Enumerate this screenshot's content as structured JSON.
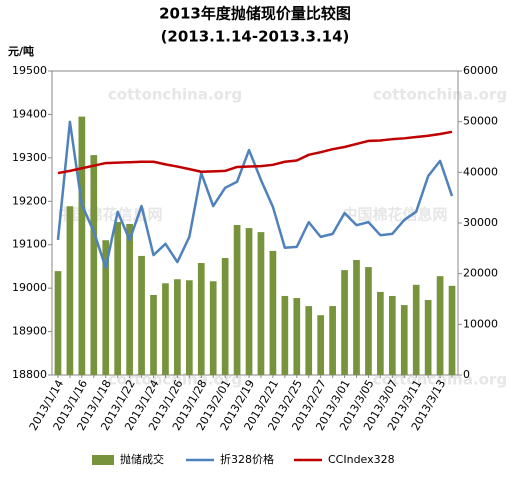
{
  "chart_data": {
    "type": "bar",
    "title": "2013年度抛储现价量比较图",
    "subtitle": "(2013.1.14-2013.3.14)",
    "y_label": "元/吨",
    "watermarks": [
      "cottonchina.org",
      "中国棉花信息网"
    ],
    "categories": [
      "2013/1/14",
      null,
      "2013/1/16",
      null,
      "2013/1/18",
      null,
      "2013/1/22",
      null,
      "2013/1/24",
      null,
      "2013/1/26",
      null,
      "2013/1/28",
      null,
      "2013/2/01",
      null,
      "2013/2/19",
      null,
      "2013/2/21",
      null,
      "2013/2/25",
      null,
      "2013/2/27",
      null,
      "2013/3/01",
      null,
      "2013/3/05",
      null,
      "2013/3/07",
      null,
      "2013/3/11",
      null,
      "2013/3/13",
      null
    ],
    "ylim": [
      18800,
      19500
    ],
    "yticks": [
      18800,
      18900,
      19000,
      19100,
      19200,
      19300,
      19400,
      19500
    ],
    "y2lim": [
      0,
      60000
    ],
    "y2ticks": [
      0,
      10000,
      20000,
      30000,
      40000,
      50000,
      60000
    ],
    "series": [
      {
        "name": "抛储成交",
        "type": "bar",
        "axis": "y2",
        "color": "#77933c",
        "values": [
          20500,
          33300,
          51000,
          43400,
          26600,
          30200,
          29800,
          23500,
          15800,
          18100,
          18900,
          18700,
          22100,
          18500,
          23100,
          29600,
          29000,
          28200,
          24500,
          15600,
          15200,
          13600,
          11800,
          13600,
          20700,
          22700,
          21300,
          16400,
          15600,
          13800,
          17800,
          14800,
          19500,
          17600
        ]
      },
      {
        "name": "折328价格",
        "type": "line",
        "axis": "y",
        "color": "#4f81bd",
        "values": [
          19111,
          19383,
          19192,
          19130,
          19047,
          19176,
          19111,
          19189,
          19076,
          19102,
          19060,
          19118,
          19265,
          19189,
          19231,
          19245,
          19318,
          19249,
          19187,
          19093,
          19095,
          19152,
          19118,
          19125,
          19173,
          19145,
          19152,
          19122,
          19125,
          19157,
          19176,
          19258,
          19293,
          19212
        ]
      },
      {
        "name": "CCIndex328",
        "type": "line",
        "axis": "y",
        "color": "#c00000",
        "values": [
          19265,
          19270,
          19276,
          19282,
          19288,
          19289,
          19290,
          19291,
          19291,
          19285,
          19280,
          19274,
          19268,
          19269,
          19270,
          19279,
          19280,
          19281,
          19284,
          19291,
          19294,
          19307,
          19313,
          19320,
          19325,
          19332,
          19339,
          19340,
          19343,
          19345,
          19348,
          19351,
          19355,
          19360
        ]
      }
    ]
  }
}
